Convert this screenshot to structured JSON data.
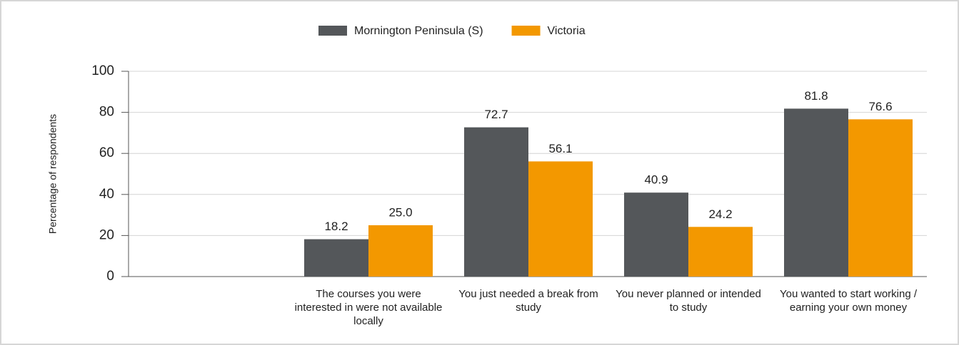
{
  "chart_data": {
    "type": "bar",
    "y_label": "Percentage of respondents",
    "categories": [
      null,
      "The courses you were interested in were not available locally",
      "You just needed a break from study",
      "You never planned or intended to study",
      "You wanted to start working / earning your own money"
    ],
    "series": [
      {
        "name": "Mornington Peninsula (S)",
        "color": "#54575a",
        "values": [
          null,
          18.2,
          72.7,
          40.9,
          81.8
        ],
        "value_labels": [
          null,
          "18.2",
          "72.7",
          "40.9",
          "81.8"
        ]
      },
      {
        "name": "Victoria",
        "color": "#f39800",
        "values": [
          null,
          25,
          56.1,
          24.2,
          76.6
        ],
        "value_labels": [
          null,
          "25.0",
          "56.1",
          "24.2",
          "76.6"
        ]
      }
    ],
    "ylim": [
      0,
      100
    ],
    "yticks": [
      0,
      20,
      40,
      60,
      80,
      100
    ],
    "grid": true,
    "legend": "top"
  }
}
